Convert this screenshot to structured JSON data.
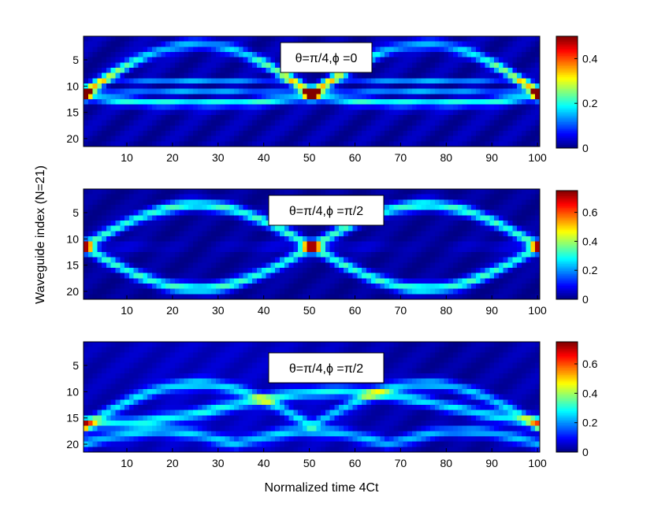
{
  "figure": {
    "ylabel": "Waveguide index (N=21)",
    "xlabel": "Normalized time 4Ct"
  },
  "chart_data": [
    {
      "type": "heatmap",
      "title": "θ=π/4,ϕ =0",
      "x_range": [
        1,
        101
      ],
      "y_range": [
        1,
        21
      ],
      "xticks": [
        10,
        20,
        30,
        40,
        50,
        60,
        70,
        80,
        90,
        100
      ],
      "yticks": [
        5,
        10,
        15,
        20
      ],
      "colormap": "jet",
      "clim": [
        0,
        0.5
      ],
      "colorbar_ticks": [
        0,
        0.2,
        0.4
      ],
      "pattern": {
        "kind": "symmetric",
        "start_row": 11.5,
        "amplitude": 9.5,
        "period": 50,
        "peak": 0.5
      }
    },
    {
      "type": "heatmap",
      "title": "θ=π/4,ϕ =π/2",
      "x_range": [
        1,
        101
      ],
      "y_range": [
        1,
        21
      ],
      "xticks": [
        10,
        20,
        30,
        40,
        50,
        60,
        70,
        80,
        90,
        100
      ],
      "yticks": [
        5,
        10,
        15,
        20
      ],
      "colormap": "jet",
      "clim": [
        0,
        0.75
      ],
      "colorbar_ticks": [
        0,
        0.2,
        0.4,
        0.6
      ],
      "pattern": {
        "kind": "sine",
        "start_row": 11.5,
        "amplitude": 8,
        "period": 100,
        "peak": 0.72
      }
    },
    {
      "type": "heatmap",
      "title": "θ=π/4,ϕ =π/2",
      "x_range": [
        1,
        101
      ],
      "y_range": [
        1,
        21
      ],
      "xticks": [
        10,
        20,
        30,
        40,
        50,
        60,
        70,
        80,
        90,
        100
      ],
      "yticks": [
        5,
        10,
        15,
        20
      ],
      "colormap": "jet",
      "clim": [
        0,
        0.75
      ],
      "colorbar_ticks": [
        0,
        0.2,
        0.4,
        0.6
      ],
      "pattern": {
        "kind": "boundary",
        "start_row": 16.5,
        "amplitude": 8,
        "period": 100,
        "peak": 0.72
      }
    }
  ]
}
